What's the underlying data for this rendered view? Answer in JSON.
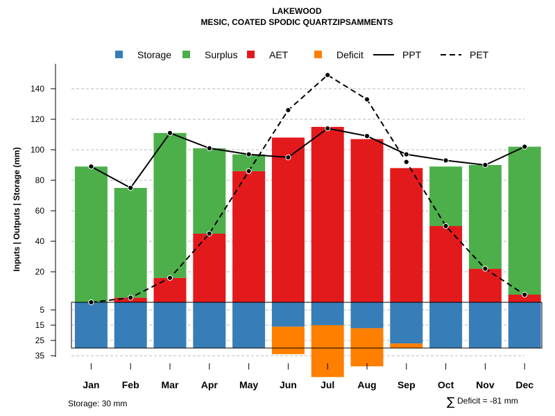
{
  "chart_data": {
    "type": "bar",
    "title": "LAKEWOOD",
    "subtitle": "MESIC, COATED SPODIC QUARTZIPSAMMENTS",
    "ylabel": "Inputs | Outputs | Storage    (mm)",
    "categories": [
      "Jan",
      "Feb",
      "Mar",
      "Apr",
      "May",
      "Jun",
      "Jul",
      "Aug",
      "Sep",
      "Oct",
      "Nov",
      "Dec"
    ],
    "upper_axis": {
      "ylim": [
        0,
        150
      ],
      "ticks": [
        "20",
        "40",
        "60",
        "80",
        "100",
        "120",
        "140"
      ],
      "grid": true
    },
    "lower_axis": {
      "ylim": [
        0,
        35
      ],
      "ticks": [
        "5",
        "15",
        "25",
        "35"
      ],
      "grid": true
    },
    "storage_capacity": 30,
    "series": [
      {
        "name": "AET",
        "kind": "bar-upper-base",
        "color": "#e31a1c",
        "values": [
          0,
          3,
          16,
          45,
          86,
          108,
          115,
          107,
          88,
          50,
          22,
          5
        ]
      },
      {
        "name": "Surplus",
        "kind": "bar-upper-stack",
        "color": "#4daf4a",
        "values": [
          89,
          72,
          95,
          56,
          11,
          0,
          0,
          0,
          0,
          39,
          68,
          97
        ]
      },
      {
        "name": "Storage",
        "kind": "bar-lower",
        "color": "#377eb8",
        "values": [
          30,
          30,
          30,
          30,
          30,
          16,
          15,
          17,
          27,
          30,
          30,
          30
        ]
      },
      {
        "name": "Deficit",
        "kind": "bar-lower-stack",
        "color": "#ff7f00",
        "values": [
          0,
          0,
          0,
          0,
          0,
          18,
          34,
          25,
          3,
          0,
          0,
          0
        ]
      },
      {
        "name": "PPT",
        "kind": "line",
        "style": "solid",
        "color": "#000000",
        "values": [
          89,
          75,
          111,
          101,
          97,
          95,
          114,
          109,
          97,
          93,
          90,
          102
        ]
      },
      {
        "name": "PET",
        "kind": "line",
        "style": "dashed",
        "color": "#000000",
        "values": [
          0,
          3,
          16,
          45,
          86,
          126,
          149,
          133,
          92,
          50,
          22,
          5
        ]
      }
    ],
    "legend": {
      "placement": "top",
      "items": [
        {
          "label": "Storage",
          "color": "#377eb8",
          "type": "square"
        },
        {
          "label": "Surplus",
          "color": "#4daf4a",
          "type": "square"
        },
        {
          "label": "AET",
          "color": "#e31a1c",
          "type": "square"
        },
        {
          "label": "Deficit",
          "color": "#ff7f00",
          "type": "square"
        },
        {
          "label": "PPT",
          "color": "#000000",
          "type": "solid-line"
        },
        {
          "label": "PET",
          "color": "#000000",
          "type": "dashed-line"
        }
      ]
    },
    "notes": {
      "storage": "Storage: 30 mm",
      "deficit_symbol": "∑",
      "deficit": "Deficit = -81 mm"
    }
  }
}
